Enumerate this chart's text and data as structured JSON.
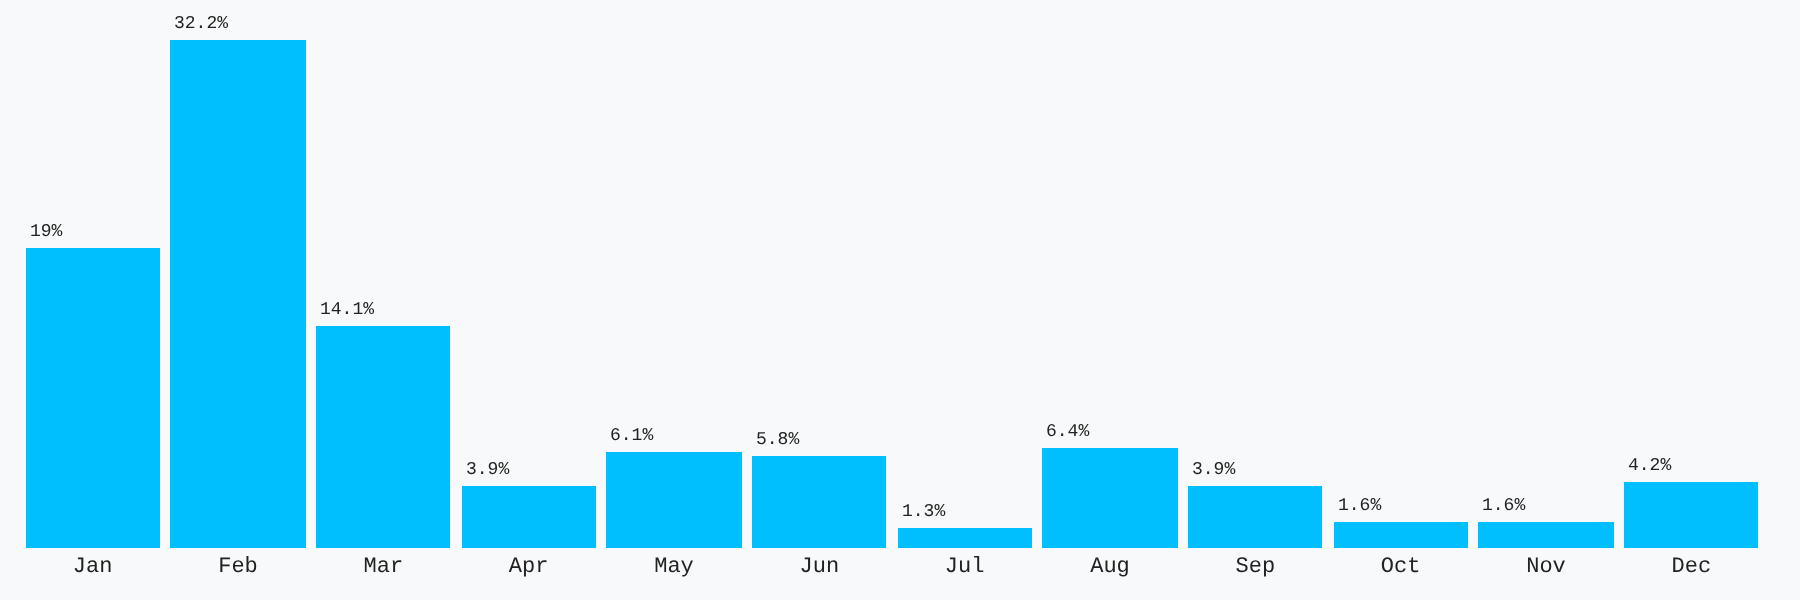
{
  "chart_data": {
    "type": "bar",
    "categories": [
      "Jan",
      "Feb",
      "Mar",
      "Apr",
      "May",
      "Jun",
      "Jul",
      "Aug",
      "Sep",
      "Oct",
      "Nov",
      "Dec"
    ],
    "values": [
      19,
      32.2,
      14.1,
      3.9,
      6.1,
      5.8,
      1.3,
      6.4,
      3.9,
      1.6,
      1.6,
      4.2
    ],
    "value_labels": [
      "19%",
      "32.2%",
      "14.1%",
      "3.9%",
      "6.1%",
      "5.8%",
      "1.3%",
      "6.4%",
      "3.9%",
      "1.6%",
      "1.6%",
      "4.2%"
    ],
    "color": "#00bfff",
    "grid": false,
    "legend": false
  }
}
